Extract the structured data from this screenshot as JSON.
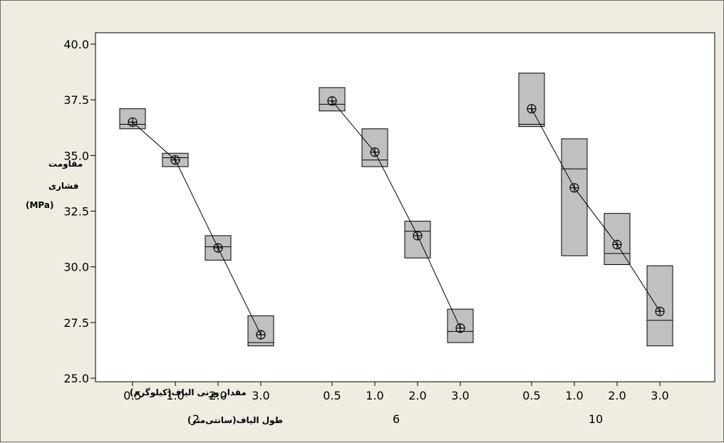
{
  "chart_data": {
    "type": "boxplot",
    "ylabel_lines": [
      "مقاومت",
      "فشاری",
      "(MPa)"
    ],
    "ylim": [
      25.0,
      40.0
    ],
    "yticks": [
      "25.0",
      "27.5",
      "30.0",
      "32.5",
      "35.0",
      "37.5",
      "40.0"
    ],
    "inner_axis_label": "مقدار وزنی الیاف(کیلوگرم)",
    "outer_axis_label": "طول الیاف(سانتی‌متر)",
    "groups": [
      {
        "label": "2",
        "boxes": [
          {
            "x": "0.5",
            "q1": 36.2,
            "median": 36.4,
            "q3": 37.1,
            "mean": 36.5
          },
          {
            "x": "1.0",
            "q1": 34.5,
            "median": 34.9,
            "q3": 35.1,
            "mean": 34.8
          },
          {
            "x": "2.0",
            "q1": 30.3,
            "median": 30.9,
            "q3": 31.4,
            "mean": 30.85
          },
          {
            "x": "3.0",
            "q1": 26.45,
            "median": 26.6,
            "q3": 27.8,
            "mean": 26.95
          }
        ]
      },
      {
        "label": "6",
        "boxes": [
          {
            "x": "0.5",
            "q1": 37.0,
            "median": 37.3,
            "q3": 38.05,
            "mean": 37.45
          },
          {
            "x": "1.0",
            "q1": 34.5,
            "median": 34.8,
            "q3": 36.2,
            "mean": 35.15
          },
          {
            "x": "2.0",
            "q1": 30.4,
            "median": 31.6,
            "q3": 32.05,
            "mean": 31.4
          },
          {
            "x": "3.0",
            "q1": 26.6,
            "median": 27.1,
            "q3": 28.1,
            "mean": 27.25
          }
        ]
      },
      {
        "label": "10",
        "boxes": [
          {
            "x": "0.5",
            "q1": 36.3,
            "median": 36.4,
            "q3": 38.7,
            "mean": 37.1
          },
          {
            "x": "1.0",
            "q1": 30.5,
            "median": 34.4,
            "q3": 35.75,
            "mean": 33.55
          },
          {
            "x": "2.0",
            "q1": 30.1,
            "median": 30.6,
            "q3": 32.4,
            "mean": 31.0
          },
          {
            "x": "3.0",
            "q1": 26.45,
            "median": 27.6,
            "q3": 30.05,
            "mean": 28.0
          }
        ]
      }
    ],
    "colors": {
      "box_fill": "#c0c0c0",
      "plot_bg": "#ffffff",
      "page_bg": "#f1ece2",
      "line": "#000000"
    }
  }
}
